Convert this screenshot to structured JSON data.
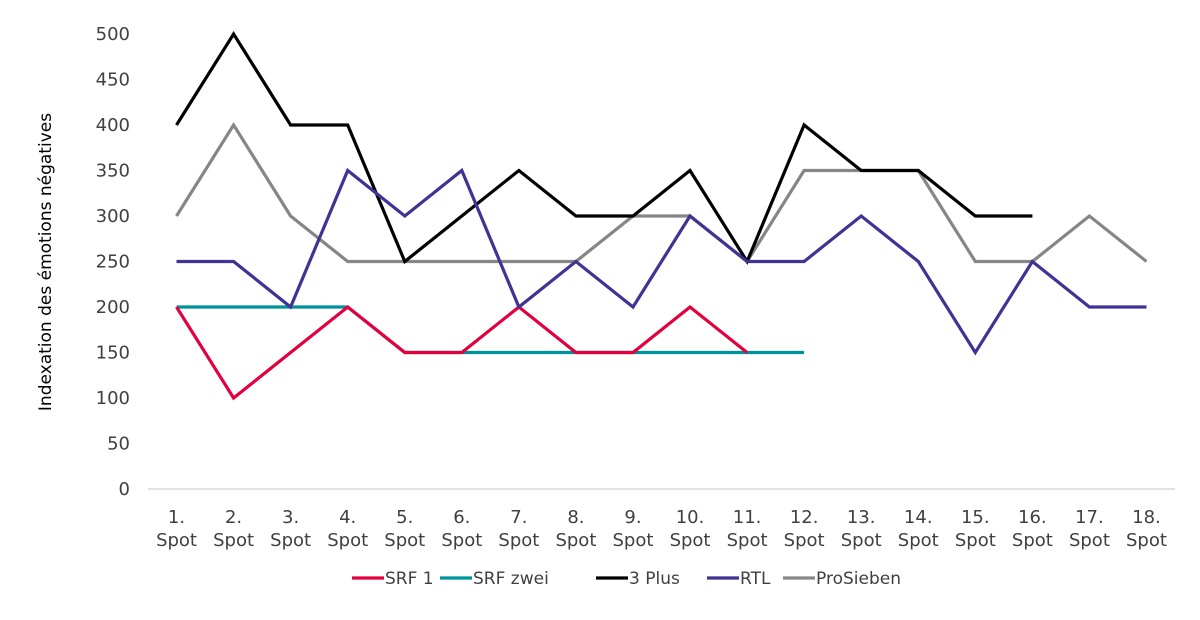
{
  "chart_data": {
    "type": "line",
    "title": "",
    "xlabel": "",
    "ylabel": "Indexation des émotions négatives",
    "ylim": [
      0,
      500
    ],
    "yticks": [
      0,
      50,
      100,
      150,
      200,
      250,
      300,
      350,
      400,
      450,
      500
    ],
    "grid": false,
    "legend_position": "bottom",
    "categories": [
      [
        "1.",
        "Spot"
      ],
      [
        "2.",
        "Spot"
      ],
      [
        "3.",
        "Spot"
      ],
      [
        "4.",
        "Spot"
      ],
      [
        "5.",
        "Spot"
      ],
      [
        "6.",
        "Spot"
      ],
      [
        "7.",
        "Spot"
      ],
      [
        "8.",
        "Spot"
      ],
      [
        "9.",
        "Spot"
      ],
      [
        "10.",
        "Spot"
      ],
      [
        "11.",
        "Spot"
      ],
      [
        "12.",
        "Spot"
      ],
      [
        "13.",
        "Spot"
      ],
      [
        "14.",
        "Spot"
      ],
      [
        "15.",
        "Spot"
      ],
      [
        "16.",
        "Spot"
      ],
      [
        "17.",
        "Spot"
      ],
      [
        "18.",
        "Spot"
      ]
    ],
    "series": [
      {
        "name": "SRF 1",
        "color": "#e4003c",
        "values": [
          200,
          100,
          150,
          200,
          150,
          150,
          200,
          150,
          150,
          200,
          150
        ]
      },
      {
        "name": "SRF zwei",
        "color": "#00929a",
        "values": [
          200,
          200,
          200,
          200,
          150,
          150,
          150,
          150,
          150,
          150,
          150,
          150
        ]
      },
      {
        "name": "3 Plus",
        "color": "#000000",
        "values": [
          400,
          500,
          400,
          400,
          250,
          300,
          350,
          300,
          300,
          350,
          250,
          400,
          350,
          350,
          300,
          300
        ]
      },
      {
        "name": "RTL",
        "color": "#3f3393",
        "values": [
          250,
          250,
          200,
          350,
          300,
          350,
          200,
          250,
          200,
          300,
          250,
          250,
          300,
          250,
          150,
          250,
          200,
          200
        ]
      },
      {
        "name": "ProSieben",
        "color": "#868686",
        "values": [
          300,
          400,
          300,
          250,
          250,
          250,
          250,
          250,
          300,
          300,
          250,
          350,
          350,
          350,
          250,
          250,
          300,
          250
        ]
      }
    ]
  }
}
